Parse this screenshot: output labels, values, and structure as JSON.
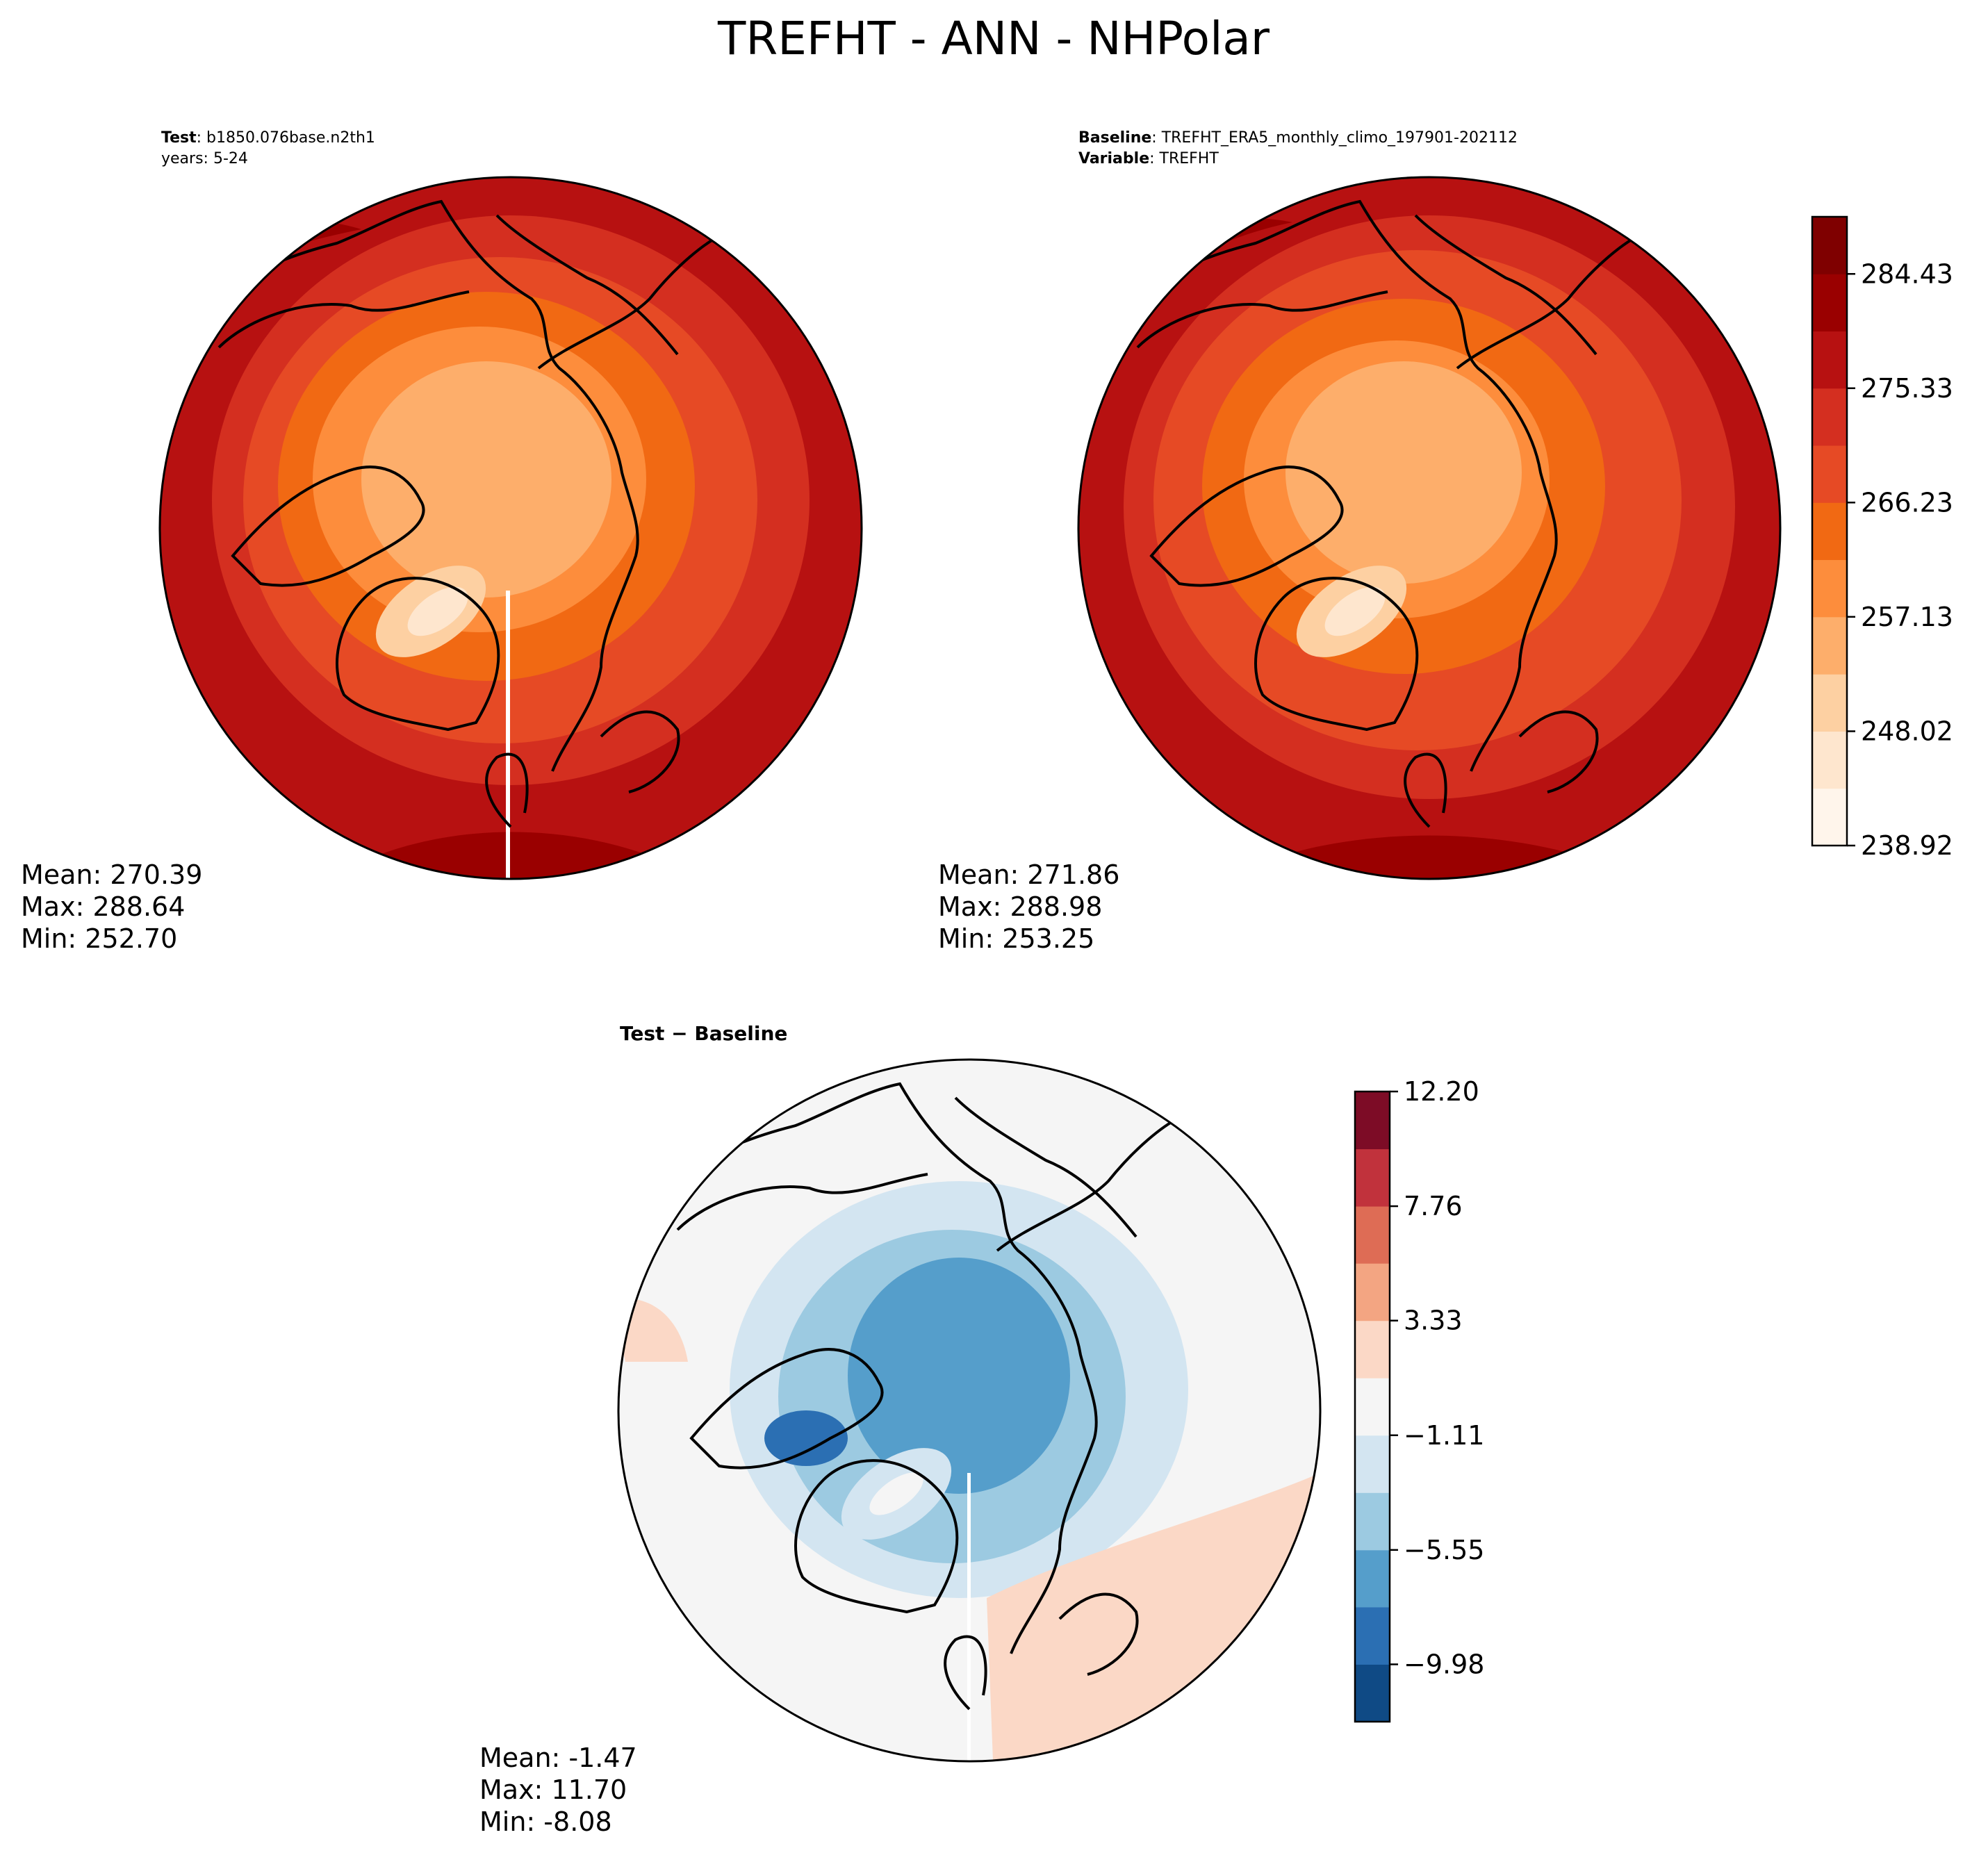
{
  "figure": {
    "title": "TREFHT - ANN - NHPolar"
  },
  "panels": [
    {
      "id": "test",
      "header": [
        {
          "bold": "Test",
          "text": ": b1850.076base.n2th1"
        },
        {
          "bold": "",
          "text": "years: 5-24"
        }
      ],
      "stats": {
        "mean": "Mean: 270.39",
        "max": "Max: 288.64",
        "min": "Min: 252.70"
      }
    },
    {
      "id": "baseline",
      "header": [
        {
          "bold": "Baseline",
          "text": ": TREFHT_ERA5_monthly_climo_197901-202112"
        },
        {
          "bold": "Variable",
          "text": ": TREFHT"
        }
      ],
      "stats": {
        "mean": "Mean: 271.86",
        "max": "Max: 288.98",
        "min": "Min: 253.25"
      }
    },
    {
      "id": "diff",
      "header": [
        {
          "bold": "Test − Baseline",
          "text": ""
        }
      ],
      "stats": {
        "mean": "Mean: -1.47",
        "max": "Max: 11.70",
        "min": "Min: -8.08"
      }
    }
  ],
  "chart_data": [
    {
      "type": "heatmap",
      "projection": "north-polar-stereographic",
      "title": "Test: b1850.076base.n2th1, years: 5-24",
      "variable": "TREFHT",
      "colormap_levels": [
        238.92,
        243.47,
        248.02,
        252.57,
        257.13,
        261.68,
        266.23,
        270.78,
        275.33,
        279.88,
        284.43,
        288.98
      ],
      "colors": [
        "#fff5eb",
        "#fee6ce",
        "#fdd0a2",
        "#fdae6b",
        "#fd8d3c",
        "#f16913",
        "#e64a25",
        "#d42f20",
        "#b71111",
        "#9a0000",
        "#7f0000"
      ],
      "colorbar_ticks": [
        "238.92",
        "248.02",
        "257.13",
        "266.23",
        "275.33",
        "284.43"
      ],
      "mean": 270.39,
      "max": 288.64,
      "min": 252.7
    },
    {
      "type": "heatmap",
      "projection": "north-polar-stereographic",
      "title": "Baseline: TREFHT_ERA5_monthly_climo_197901-202112",
      "variable": "TREFHT",
      "colorbar_ticks": [
        "238.92",
        "248.02",
        "257.13",
        "266.23",
        "275.33",
        "284.43"
      ],
      "mean": 271.86,
      "max": 288.98,
      "min": 253.25
    },
    {
      "type": "heatmap",
      "projection": "north-polar-stereographic",
      "title": "Test − Baseline",
      "colormap_levels": [
        -12.2,
        -9.98,
        -7.76,
        -5.55,
        -3.33,
        -1.11,
        1.11,
        3.33,
        5.55,
        7.76,
        9.98,
        12.2
      ],
      "colors": [
        "#0f4a85",
        "#2b6fb3",
        "#559ecb",
        "#9ccae1",
        "#d3e5f1",
        "#f5f5f5",
        "#fbd8c6",
        "#f3a582",
        "#de6c55",
        "#c1323c",
        "#7d0c26"
      ],
      "colorbar_ticks": [
        "12.20",
        "7.76",
        "3.33",
        "−1.11",
        "−5.55",
        "−9.98"
      ],
      "mean": -1.47,
      "max": 11.7,
      "min": -8.08
    }
  ]
}
